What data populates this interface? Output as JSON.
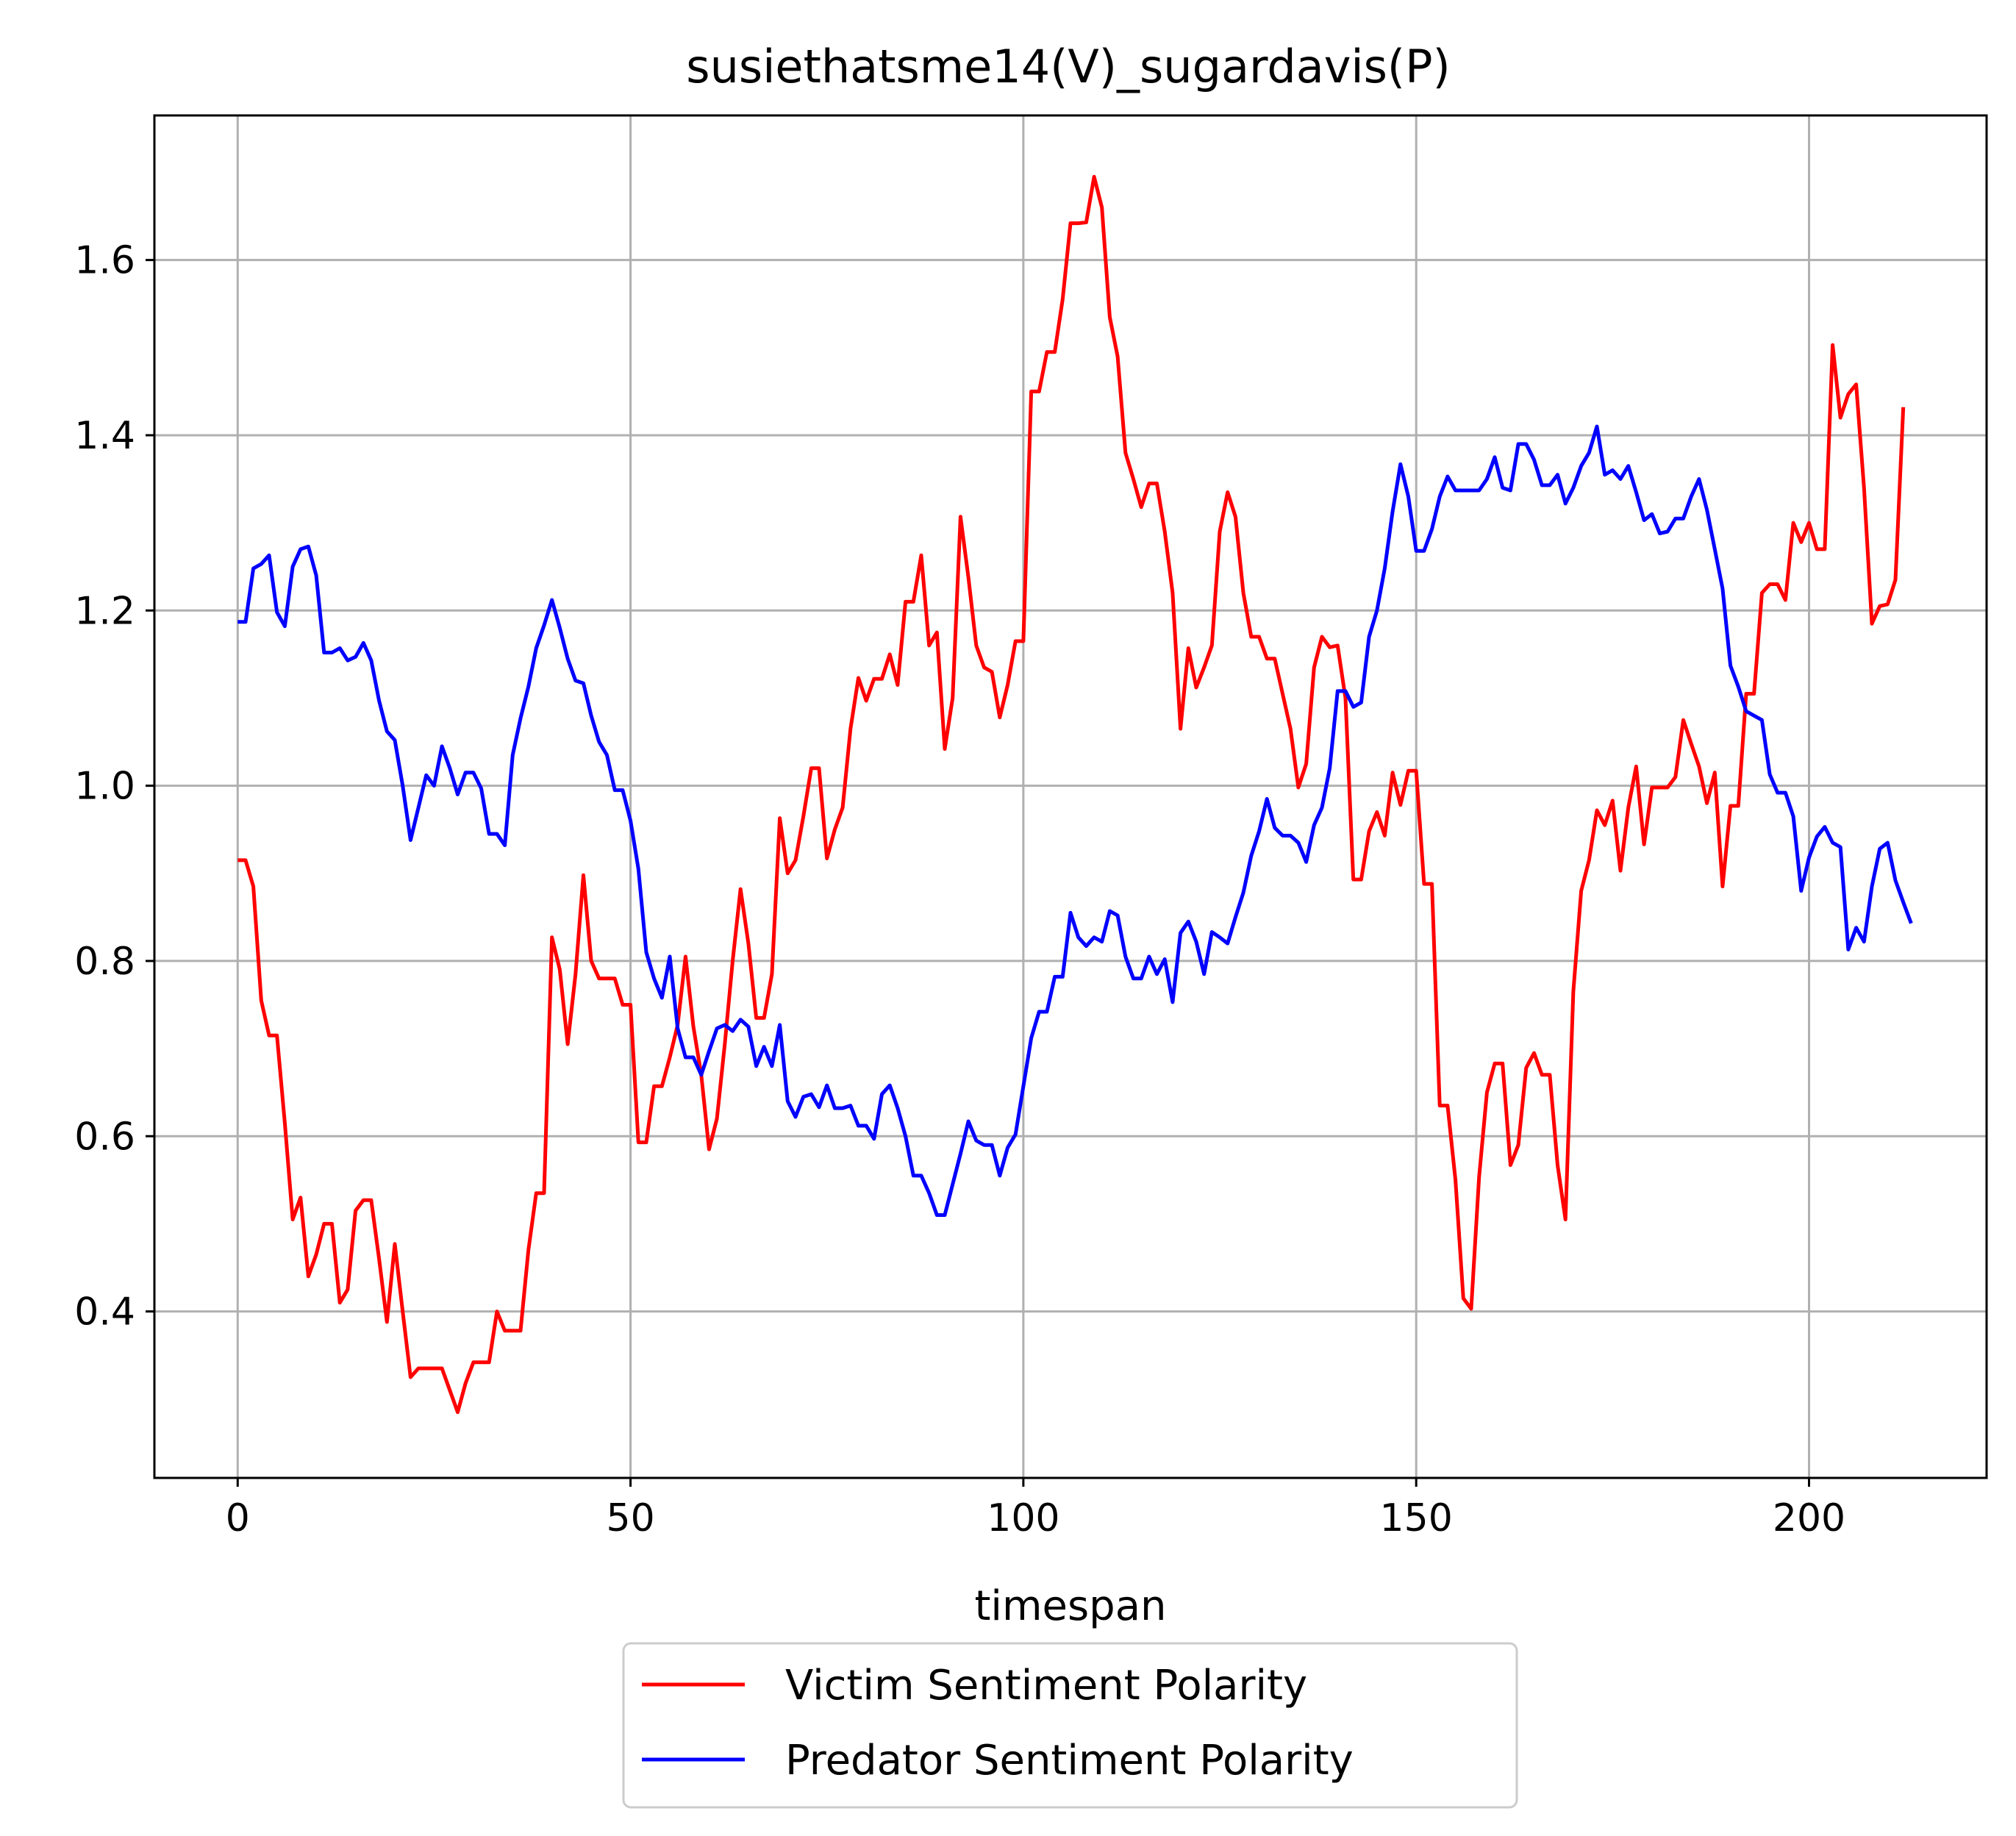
{
  "chart_data": {
    "type": "line",
    "title": "susiethatsme14(V)_sugardavis(P)",
    "xlabel": "timespan",
    "ylabel": "",
    "xlim": [
      -10.6,
      222.6
    ],
    "ylim": [
      0.21,
      1.765
    ],
    "xticks": [
      0,
      50,
      100,
      150,
      200
    ],
    "yticks": [
      0.4,
      0.6,
      0.8,
      1.0,
      1.2,
      1.4,
      1.6
    ],
    "xtick_labels": [
      "0",
      "50",
      "100",
      "150",
      "200"
    ],
    "ytick_labels": [
      "0.4",
      "0.6",
      "0.8",
      "1.0",
      "1.2",
      "1.4",
      "1.6"
    ],
    "grid": true,
    "legend_position": "bottom-center (below axes)",
    "series": [
      {
        "name": "Victim Sentiment Polarity",
        "color": "#ff0000",
        "x_start": 0,
        "values": [
          0.915,
          0.915,
          0.885,
          0.755,
          0.715,
          0.715,
          0.615,
          0.505,
          0.53,
          0.44,
          0.465,
          0.5,
          0.5,
          0.41,
          0.425,
          0.515,
          0.527,
          0.527,
          0.46,
          0.388,
          0.477,
          0.4,
          0.325,
          0.335,
          0.335,
          0.335,
          0.335,
          0.31,
          0.285,
          0.318,
          0.342,
          0.342,
          0.342,
          0.4,
          0.378,
          0.378,
          0.378,
          0.47,
          0.535,
          0.535,
          0.827,
          0.79,
          0.705,
          0.785,
          0.898,
          0.8,
          0.78,
          0.78,
          0.78,
          0.75,
          0.75,
          0.593,
          0.593,
          0.657,
          0.657,
          0.69,
          0.727,
          0.805,
          0.725,
          0.67,
          0.585,
          0.62,
          0.705,
          0.8,
          0.882,
          0.82,
          0.735,
          0.735,
          0.785,
          0.963,
          0.9,
          0.915,
          0.965,
          1.02,
          1.02,
          0.917,
          0.95,
          0.975,
          1.065,
          1.123,
          1.097,
          1.122,
          1.122,
          1.15,
          1.115,
          1.21,
          1.21,
          1.263,
          1.16,
          1.175,
          1.042,
          1.1,
          1.307,
          1.238,
          1.16,
          1.135,
          1.13,
          1.078,
          1.115,
          1.165,
          1.165,
          1.45,
          1.45,
          1.495,
          1.495,
          1.555,
          1.642,
          1.642,
          1.643,
          1.695,
          1.66,
          1.535,
          1.49,
          1.38,
          1.35,
          1.318,
          1.345,
          1.345,
          1.29,
          1.22,
          1.065,
          1.157,
          1.112,
          1.135,
          1.16,
          1.29,
          1.335,
          1.307,
          1.22,
          1.17,
          1.17,
          1.145,
          1.145,
          1.105,
          1.065,
          0.998,
          1.025,
          1.135,
          1.17,
          1.158,
          1.16,
          1.1,
          0.893,
          0.893,
          0.948,
          0.97,
          0.943,
          1.015,
          0.978,
          1.017,
          1.017,
          0.888,
          0.888,
          0.635,
          0.635,
          0.55,
          0.415,
          0.403,
          0.553,
          0.65,
          0.683,
          0.683,
          0.567,
          0.59,
          0.678,
          0.695,
          0.67,
          0.67,
          0.567,
          0.505,
          0.765,
          0.88,
          0.915,
          0.972,
          0.955,
          0.983,
          0.903,
          0.975,
          1.022,
          0.933,
          0.998,
          0.998,
          0.998,
          1.01,
          1.075,
          1.048,
          1.022,
          0.98,
          1.015,
          0.885,
          0.977,
          0.977,
          1.105,
          1.105,
          1.22,
          1.23,
          1.23,
          1.212,
          1.3,
          1.278,
          1.3,
          1.27,
          1.27,
          1.503,
          1.42,
          1.447,
          1.458,
          1.34,
          1.185,
          1.205,
          1.207,
          1.235,
          1.432
        ]
      },
      {
        "name": "Predator Sentiment Polarity",
        "color": "#0000ff",
        "x_start": 0,
        "values": [
          1.187,
          1.187,
          1.248,
          1.253,
          1.263,
          1.198,
          1.182,
          1.25,
          1.27,
          1.273,
          1.24,
          1.152,
          1.152,
          1.157,
          1.143,
          1.147,
          1.163,
          1.143,
          1.097,
          1.062,
          1.052,
          1.0,
          0.938,
          0.975,
          1.012,
          1.0,
          1.045,
          1.02,
          0.99,
          1.015,
          1.015,
          0.997,
          0.945,
          0.945,
          0.932,
          1.035,
          1.077,
          1.113,
          1.157,
          1.183,
          1.212,
          1.18,
          1.145,
          1.12,
          1.117,
          1.08,
          1.05,
          1.035,
          0.995,
          0.995,
          0.96,
          0.905,
          0.81,
          0.78,
          0.758,
          0.805,
          0.723,
          0.69,
          0.69,
          0.67,
          0.697,
          0.723,
          0.727,
          0.72,
          0.733,
          0.725,
          0.68,
          0.702,
          0.68,
          0.727,
          0.64,
          0.622,
          0.645,
          0.648,
          0.633,
          0.658,
          0.632,
          0.632,
          0.635,
          0.612,
          0.612,
          0.597,
          0.648,
          0.658,
          0.632,
          0.6,
          0.555,
          0.555,
          0.535,
          0.51,
          0.51,
          0.545,
          0.58,
          0.617,
          0.595,
          0.59,
          0.59,
          0.555,
          0.587,
          0.602,
          0.657,
          0.712,
          0.742,
          0.742,
          0.782,
          0.782,
          0.855,
          0.827,
          0.817,
          0.827,
          0.822,
          0.857,
          0.852,
          0.805,
          0.78,
          0.78,
          0.805,
          0.785,
          0.802,
          0.753,
          0.832,
          0.845,
          0.822,
          0.785,
          0.833,
          0.827,
          0.82,
          0.85,
          0.878,
          0.92,
          0.948,
          0.985,
          0.952,
          0.943,
          0.943,
          0.935,
          0.913,
          0.955,
          0.975,
          1.02,
          1.108,
          1.108,
          1.09,
          1.095,
          1.17,
          1.2,
          1.248,
          1.313,
          1.367,
          1.33,
          1.268,
          1.268,
          1.293,
          1.33,
          1.353,
          1.337,
          1.337,
          1.337,
          1.337,
          1.35,
          1.375,
          1.34,
          1.337,
          1.39,
          1.39,
          1.372,
          1.343,
          1.343,
          1.355,
          1.322,
          1.34,
          1.365,
          1.38,
          1.41,
          1.355,
          1.36,
          1.35,
          1.365,
          1.335,
          1.303,
          1.31,
          1.288,
          1.29,
          1.305,
          1.305,
          1.33,
          1.35,
          1.315,
          1.27,
          1.225,
          1.137,
          1.113,
          1.085,
          1.08,
          1.075,
          1.013,
          0.992,
          0.992,
          0.965,
          0.88,
          0.918,
          0.942,
          0.953,
          0.935,
          0.93,
          0.813,
          0.838,
          0.822,
          0.885,
          0.928,
          0.935,
          0.892,
          0.867,
          0.843
        ]
      }
    ]
  }
}
